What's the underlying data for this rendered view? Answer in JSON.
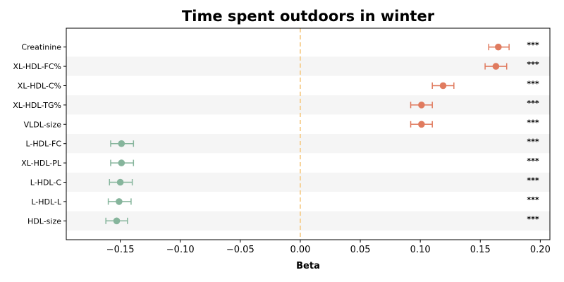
{
  "chart_data": {
    "type": "scatter",
    "subtype": "forest-plot",
    "title": "Time spent outdoors in winter",
    "xlabel": "Beta",
    "ylabel": "",
    "xlim": [
      -0.195,
      0.208
    ],
    "xticks": [
      -0.15,
      -0.1,
      -0.05,
      0.0,
      0.05,
      0.1,
      0.15,
      0.2
    ],
    "xtick_labels": [
      "−0.15",
      "−0.10",
      "−0.05",
      "0.00",
      "0.05",
      "0.10",
      "0.15",
      "0.20"
    ],
    "reference_line": {
      "x": 0,
      "style": "dashed",
      "color": "#f5c77e"
    },
    "grid": false,
    "row_shading": [
      "#ffffff",
      "#f5f5f5"
    ],
    "colors": {
      "positive": "#e07b5f",
      "negative": "#86b59c"
    },
    "categories": [
      "Creatinine",
      "XL-HDL-FC%",
      "XL-HDL-C%",
      "XL-HDL-TG%",
      "VLDL-size",
      "L-HDL-FC",
      "XL-HDL-PL",
      "L-HDL-C",
      "L-HDL-L",
      "HDL-size"
    ],
    "beta": [
      0.165,
      0.163,
      0.119,
      0.101,
      0.101,
      -0.149,
      -0.149,
      -0.15,
      -0.151,
      -0.153
    ],
    "ci_lower": [
      0.157,
      0.154,
      0.11,
      0.092,
      0.092,
      -0.158,
      -0.158,
      -0.159,
      -0.16,
      -0.162
    ],
    "ci_upper": [
      0.174,
      0.172,
      0.128,
      0.11,
      0.11,
      -0.139,
      -0.139,
      -0.14,
      -0.141,
      -0.144
    ],
    "significance": [
      "***",
      "***",
      "***",
      "***",
      "***",
      "***",
      "***",
      "***",
      "***",
      "***"
    ]
  }
}
